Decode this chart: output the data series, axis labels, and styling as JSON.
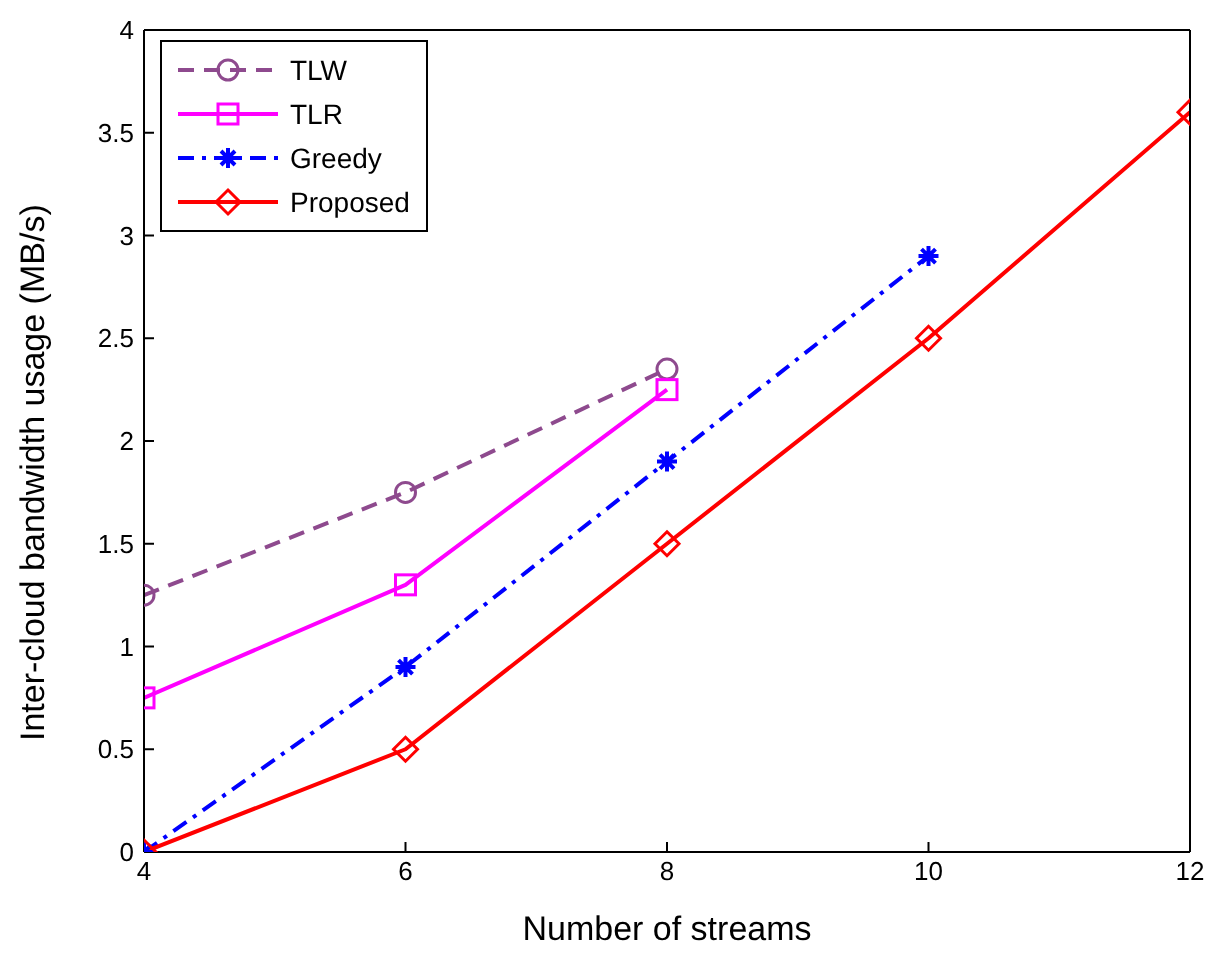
{
  "chart_data": {
    "type": "line",
    "xlabel": "Number of streams",
    "ylabel": "Inter-cloud bandwidth usage (MB/s)",
    "x": [
      4,
      6,
      8,
      10,
      12
    ],
    "series": [
      {
        "name": "TLW",
        "color": "#8e4a8e",
        "values": [
          1.25,
          1.75,
          2.35,
          null,
          null
        ],
        "marker": "circle",
        "line_style": "dashed"
      },
      {
        "name": "TLR",
        "color": "#ff00ff",
        "values": [
          0.75,
          1.3,
          2.25,
          null,
          null
        ],
        "marker": "square",
        "line_style": "solid"
      },
      {
        "name": "Greedy",
        "color": "#0000ff",
        "values": [
          0,
          0.9,
          1.9,
          2.9,
          null
        ],
        "marker": "cross",
        "line_style": "dashdot"
      },
      {
        "name": "Proposed",
        "color": "#ff0000",
        "values": [
          0,
          0.5,
          1.5,
          2.5,
          3.6
        ],
        "marker": "diamond",
        "line_style": "solid"
      }
    ],
    "xlim": [
      4,
      12
    ],
    "xticks": [
      4,
      6,
      8,
      10,
      12
    ],
    "ylim": [
      0,
      4
    ],
    "yticks": [
      0,
      0.5,
      1,
      1.5,
      2,
      2.5,
      3,
      3.5,
      4
    ],
    "legend": "top left"
  }
}
